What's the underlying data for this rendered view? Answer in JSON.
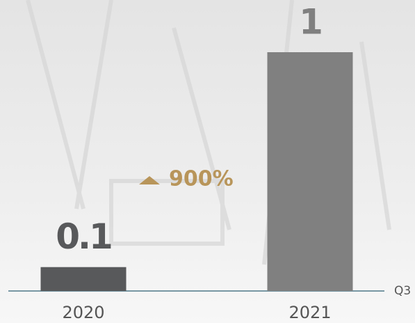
{
  "chart_data": {
    "type": "bar",
    "categories": [
      "2020",
      "2021"
    ],
    "values": [
      0.1,
      1
    ],
    "colors": [
      "#58595b",
      "#808080"
    ],
    "ylim": [
      0,
      1
    ],
    "x_label": "Q3",
    "annotation": {
      "text": "900%",
      "color": "#b8955a"
    }
  }
}
